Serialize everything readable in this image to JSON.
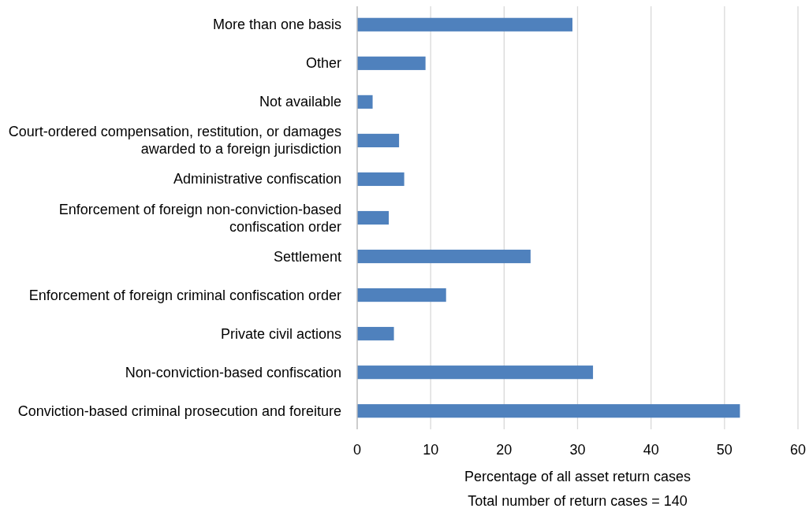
{
  "chart_data": {
    "type": "bar",
    "orientation": "horizontal",
    "xlabel": "Percentage of all asset return cases",
    "annotations": [
      "Total number of return cases = 140"
    ],
    "categories": [
      "More than one basis",
      "Other",
      "Not available",
      "Court-ordered compensation, restitution, or damages awarded to a foreign jurisdiction",
      "Administrative confiscation",
      "Enforcement of foreign non-conviction-based confiscation order",
      "Settlement",
      "Enforcement of foreign criminal confiscation order",
      "Private civil actions",
      "Non-conviction-based confiscation",
      "Conviction-based criminal prosecution and foreiture"
    ],
    "values": [
      29.3,
      9.3,
      2.1,
      5.7,
      6.4,
      4.3,
      23.6,
      12.1,
      5.0,
      32.1,
      52.1
    ],
    "color": "#4f81bd",
    "xlim": [
      0,
      60
    ],
    "xticks": [
      0,
      10,
      20,
      30,
      40,
      50,
      60
    ],
    "grid": "x"
  }
}
